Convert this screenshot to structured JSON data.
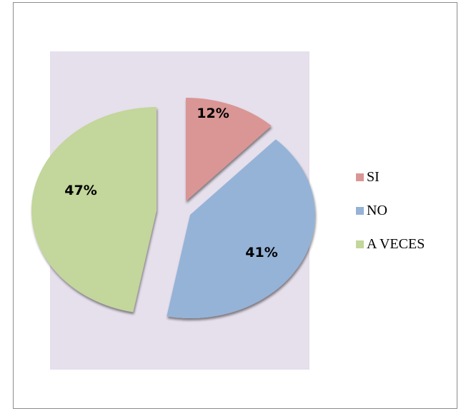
{
  "chart_data": {
    "type": "pie",
    "title": "",
    "categories": [
      "SI",
      "NO",
      "A VECES"
    ],
    "values": [
      12,
      41,
      47
    ],
    "data_labels": [
      "12%",
      "41%",
      "47%"
    ],
    "colors": [
      "#d99694",
      "#95b3d7",
      "#c3d69b"
    ],
    "style": "exploded 3D pie",
    "legend_position": "right"
  }
}
